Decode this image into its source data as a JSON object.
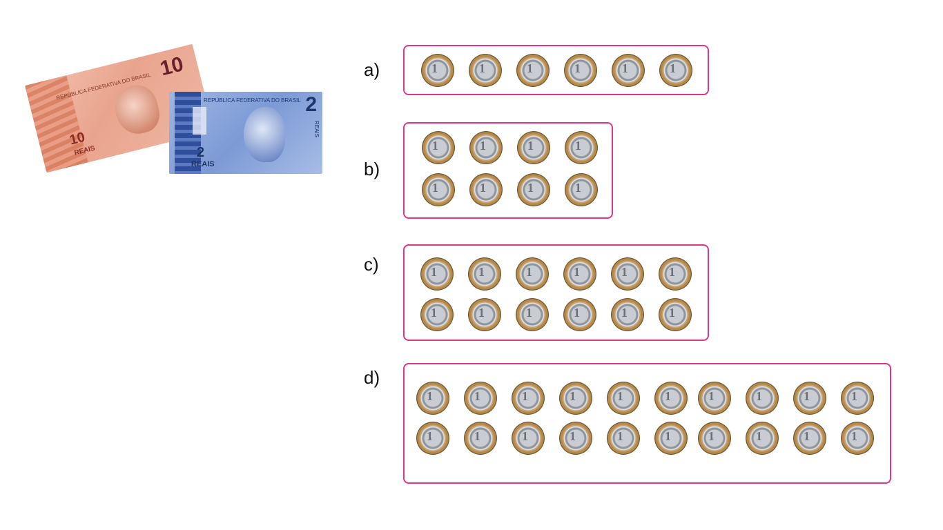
{
  "banknotes": {
    "ten": {
      "header": "REPÚBLICA FEDERATIVA DO BRASIL",
      "value": "10",
      "corner_value": "10",
      "currency": "REAIS"
    },
    "two": {
      "header": "REPÚBLICA FEDERATIVA DO BRASIL",
      "value": "2",
      "corner_value": "2",
      "currency": "REAIS",
      "side_text": "REAIS"
    }
  },
  "exercises": [
    {
      "label": "a)",
      "coins": 6
    },
    {
      "label": "b)",
      "coins": 8
    },
    {
      "label": "c)",
      "coins": 12
    },
    {
      "label": "d)",
      "coins": 20
    }
  ],
  "coin_face": "1",
  "colors": {
    "box_border": "#e0338c"
  }
}
